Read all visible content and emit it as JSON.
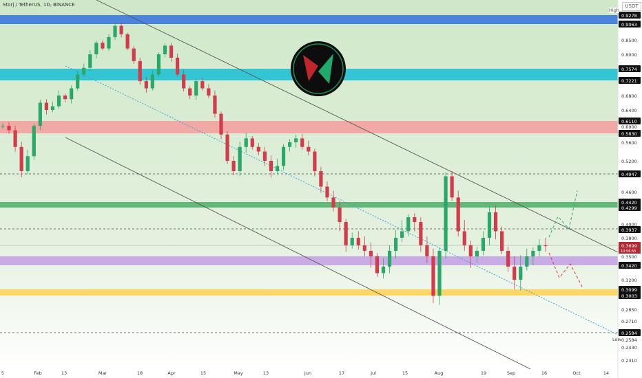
{
  "header": {
    "symbol": "Storj / TetherUS, 1D, BINANCE",
    "currency": "USDT"
  },
  "labels": {
    "high": "High",
    "low": "Low"
  },
  "colors": {
    "bg_green": "#d8ecd3",
    "blue": "#3f7bdc",
    "cyan": "#26c1d4",
    "red": "#f2a3a0",
    "green_zone": "#59b270",
    "purple": "#c7a6e4",
    "yellow": "#ffd25a",
    "up": "#2aa86a",
    "down": "#d23b4a",
    "trend": "#555555",
    "dotted": "#3da0e0"
  },
  "chart_data": {
    "type": "candlestick",
    "y_ticks": [
      "0.9278",
      "0.9063",
      "0.8500",
      "0.8000",
      "0.7574",
      "0.7221",
      "0.6800",
      "0.6400",
      "0.6110",
      "0.6000",
      "0.5830",
      "0.5600",
      "0.5200",
      "0.4947",
      "0.4600",
      "0.4420",
      "0.4299",
      "0.4000",
      "0.3937",
      "0.3800",
      "0.3699",
      "0.3500",
      "0.3420",
      "0.3200",
      "0.3099",
      "0.3003",
      "0.2850",
      "0.2710",
      "0.2584",
      "0.2584",
      "0.2430",
      "0.2310"
    ],
    "y_ticks_highlight": [
      "0.9278",
      "0.9063",
      "0.7574",
      "0.7221",
      "0.6110",
      "0.5830",
      "0.4947",
      "0.4420",
      "0.4299",
      "0.3937",
      "0.3699",
      "0.3501",
      "0.3420",
      "0.3099",
      "0.3003",
      "0.2584"
    ],
    "x_ticks": [
      "5",
      "Feb",
      "13",
      "Mar",
      "18",
      "Apr",
      "15",
      "May",
      "13",
      "Jun",
      "17",
      "Jul",
      "15",
      "Aug",
      "19",
      "Sep",
      "16",
      "Oct",
      "14"
    ],
    "current_price": "0.3699",
    "current_countdown": "10:56:55",
    "zones": [
      {
        "name": "blue",
        "from": 0.9063,
        "to": 0.9278
      },
      {
        "name": "cyan",
        "from": 0.7221,
        "to": 0.7574
      },
      {
        "name": "red",
        "from": 0.583,
        "to": 0.611
      },
      {
        "name": "green_zone",
        "from": 0.4299,
        "to": 0.442
      },
      {
        "name": "purple",
        "from": 0.342,
        "to": 0.3501
      },
      {
        "name": "yellow",
        "from": 0.3003,
        "to": 0.3099
      }
    ],
    "dashed_levels": [
      0.4947,
      0.3937,
      0.2584
    ],
    "candles_close_path": [
      0.6,
      0.59,
      0.55,
      0.5,
      0.53,
      0.6,
      0.66,
      0.64,
      0.65,
      0.68,
      0.67,
      0.7,
      0.74,
      0.76,
      0.8,
      0.84,
      0.82,
      0.86,
      0.9,
      0.87,
      0.82,
      0.78,
      0.72,
      0.7,
      0.74,
      0.8,
      0.83,
      0.79,
      0.74,
      0.7,
      0.68,
      0.72,
      0.7,
      0.68,
      0.63,
      0.58,
      0.52,
      0.5,
      0.55,
      0.57,
      0.55,
      0.54,
      0.52,
      0.5,
      0.51,
      0.55,
      0.56,
      0.57,
      0.55,
      0.54,
      0.5,
      0.47,
      0.45,
      0.43,
      0.4,
      0.37,
      0.38,
      0.37,
      0.36,
      0.35,
      0.33,
      0.34,
      0.36,
      0.38,
      0.39,
      0.41,
      0.4,
      0.37,
      0.35,
      0.3,
      0.36,
      0.49,
      0.45,
      0.39,
      0.37,
      0.35,
      0.36,
      0.38,
      0.42,
      0.39,
      0.36,
      0.34,
      0.32,
      0.34,
      0.35,
      0.36,
      0.37,
      0.3699
    ]
  }
}
